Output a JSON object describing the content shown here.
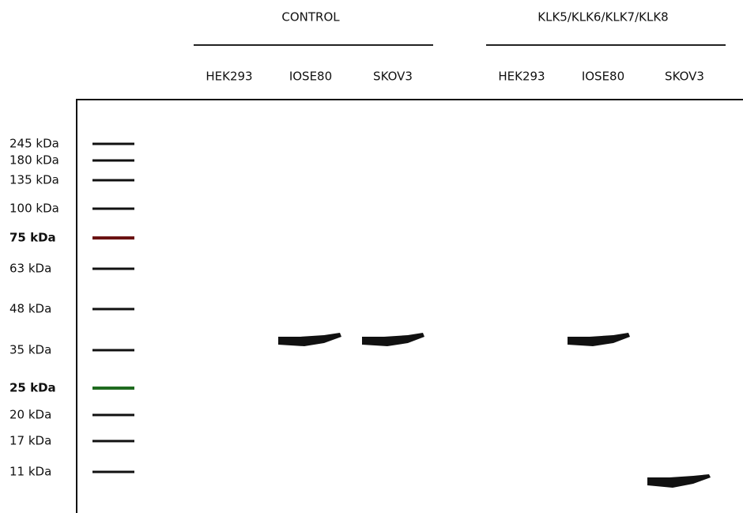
{
  "groups": [
    {
      "label": "CONTROL",
      "lanes": [
        "HEK293",
        "IOSE80",
        "SKOV3"
      ]
    },
    {
      "label": "KLK5/KLK6/KLK7/KLK8",
      "lanes": [
        "HEK293",
        "IOSE80",
        "SKOV3"
      ]
    }
  ],
  "ladder": [
    "245 kDa",
    "180 kDa",
    "135 kDa",
    "100 kDa",
    "75 kDa",
    "63 kDa",
    "48 kDa",
    "35 kDa",
    "25 kDa",
    "20 kDa",
    "17 kDa",
    "11 kDa"
  ]
}
